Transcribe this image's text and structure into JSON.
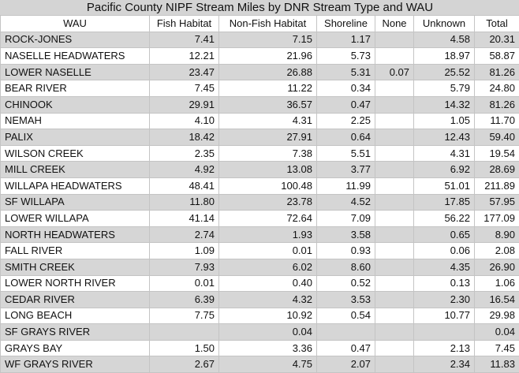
{
  "table": {
    "title": "Pacific County NIPF Stream Miles by DNR Stream Type and WAU",
    "columns": [
      "WAU",
      "Fish Habitat",
      "Non-Fish Habitat",
      "Shoreline",
      "None",
      "Unknown",
      "Total"
    ],
    "rows": [
      [
        "ROCK-JONES",
        "7.41",
        "7.15",
        "1.17",
        null,
        "4.58",
        "20.31"
      ],
      [
        "NASELLE HEADWATERS",
        "12.21",
        "21.96",
        "5.73",
        null,
        "18.97",
        "58.87"
      ],
      [
        "LOWER NASELLE",
        "23.47",
        "26.88",
        "5.31",
        "0.07",
        "25.52",
        "81.26"
      ],
      [
        "BEAR RIVER",
        "7.45",
        "11.22",
        "0.34",
        null,
        "5.79",
        "24.80"
      ],
      [
        "CHINOOK",
        "29.91",
        "36.57",
        "0.47",
        null,
        "14.32",
        "81.26"
      ],
      [
        "NEMAH",
        "4.10",
        "4.31",
        "2.25",
        null,
        "1.05",
        "11.70"
      ],
      [
        "PALIX",
        "18.42",
        "27.91",
        "0.64",
        null,
        "12.43",
        "59.40"
      ],
      [
        "WILSON CREEK",
        "2.35",
        "7.38",
        "5.51",
        null,
        "4.31",
        "19.54"
      ],
      [
        "MILL CREEK",
        "4.92",
        "13.08",
        "3.77",
        null,
        "6.92",
        "28.69"
      ],
      [
        "WILLAPA HEADWATERS",
        "48.41",
        "100.48",
        "11.99",
        null,
        "51.01",
        "211.89"
      ],
      [
        "SF WILLAPA",
        "11.80",
        "23.78",
        "4.52",
        null,
        "17.85",
        "57.95"
      ],
      [
        "LOWER WILLAPA",
        "41.14",
        "72.64",
        "7.09",
        null,
        "56.22",
        "177.09"
      ],
      [
        "NORTH HEADWATERS",
        "2.74",
        "1.93",
        "3.58",
        null,
        "0.65",
        "8.90"
      ],
      [
        "FALL RIVER",
        "1.09",
        "0.01",
        "0.93",
        null,
        "0.06",
        "2.08"
      ],
      [
        "SMITH CREEK",
        "7.93",
        "6.02",
        "8.60",
        null,
        "4.35",
        "26.90"
      ],
      [
        "LOWER NORTH RIVER",
        "0.01",
        "0.40",
        "0.52",
        null,
        "0.13",
        "1.06"
      ],
      [
        "CEDAR RIVER",
        "6.39",
        "4.32",
        "3.53",
        null,
        "2.30",
        "16.54"
      ],
      [
        "LONG BEACH",
        "7.75",
        "10.92",
        "0.54",
        null,
        "10.77",
        "29.98"
      ],
      [
        "SF GRAYS RIVER",
        null,
        "0.04",
        null,
        null,
        null,
        "0.04"
      ],
      [
        "GRAYS BAY",
        "1.50",
        "3.36",
        "0.47",
        null,
        "2.13",
        "7.45"
      ],
      [
        "WF GRAYS RIVER",
        "2.67",
        "4.75",
        "2.07",
        null,
        "2.34",
        "11.83"
      ]
    ]
  }
}
